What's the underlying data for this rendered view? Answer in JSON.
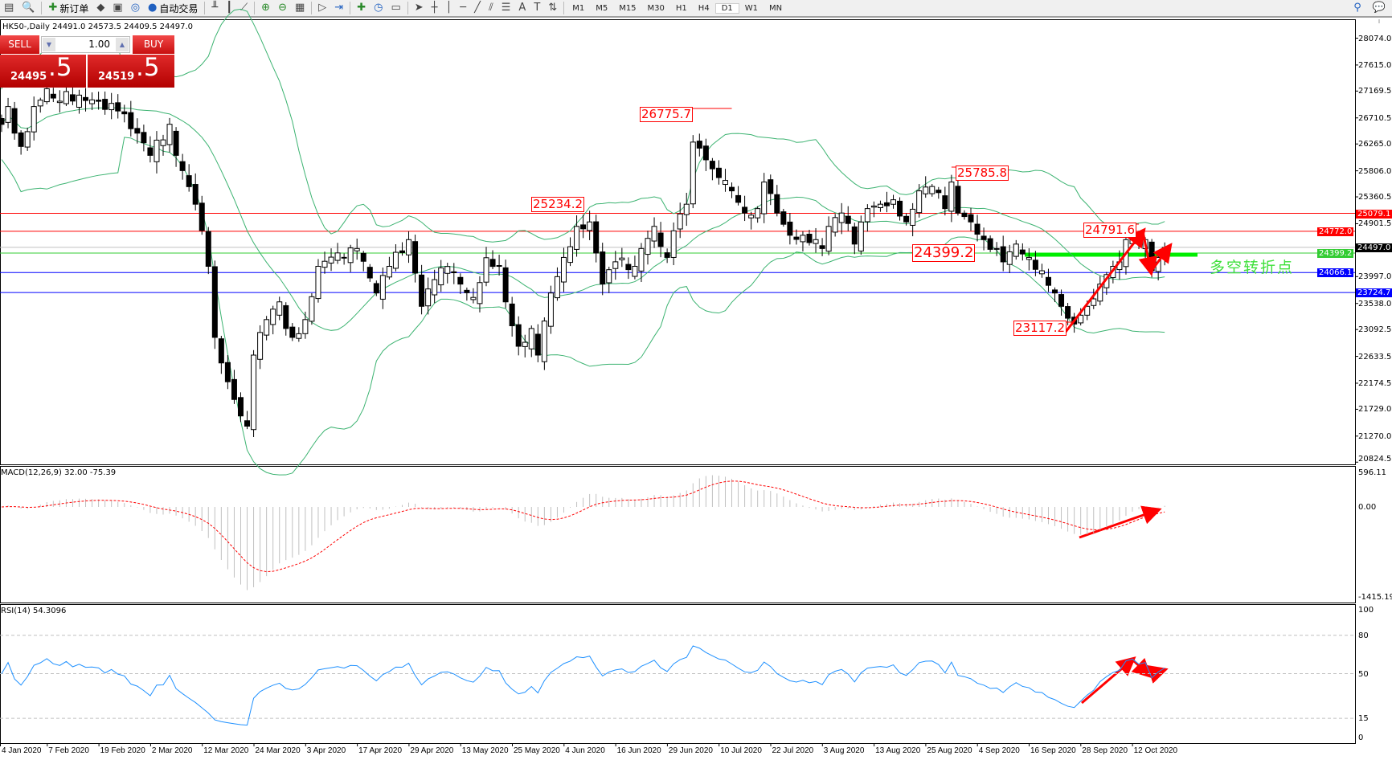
{
  "toolbar": {
    "icons": [
      {
        "name": "new-chart-icon",
        "glyph": "▤"
      },
      {
        "name": "zoom-window-icon",
        "glyph": "🔍"
      },
      {
        "name": "new-order-icon",
        "glyph": "✚",
        "label": "新订单"
      },
      {
        "name": "metaeditor-icon",
        "glyph": "◆"
      },
      {
        "name": "navigator-icon",
        "glyph": "▣"
      },
      {
        "name": "signals-icon",
        "glyph": "◎"
      },
      {
        "name": "auto-trading-icon",
        "glyph": "●",
        "label": "自动交易"
      },
      {
        "name": "bar-chart-icon",
        "glyph": "╨"
      },
      {
        "name": "candlestick-icon",
        "glyph": "┃"
      },
      {
        "name": "line-chart-icon",
        "glyph": "⟋"
      },
      {
        "name": "zoom-in-icon",
        "glyph": "⊕"
      },
      {
        "name": "zoom-out-icon",
        "glyph": "⊖"
      },
      {
        "name": "tile-windows-icon",
        "glyph": "▦"
      },
      {
        "name": "chart-shift-icon",
        "glyph": "▷"
      },
      {
        "name": "autoscroll-icon",
        "glyph": "⇥"
      },
      {
        "name": "indicators-icon",
        "glyph": "✚"
      },
      {
        "name": "periods-icon",
        "glyph": "◷"
      },
      {
        "name": "templates-icon",
        "glyph": "▭"
      },
      {
        "name": "cursor-icon",
        "glyph": "➤"
      },
      {
        "name": "crosshair-icon",
        "glyph": "┼"
      },
      {
        "name": "vertical-line-icon",
        "glyph": "│"
      },
      {
        "name": "horizontal-line-icon",
        "glyph": "─"
      },
      {
        "name": "trendline-icon",
        "glyph": "╱"
      },
      {
        "name": "equidistant-channel-icon",
        "glyph": "⫽"
      },
      {
        "name": "fibonacci-icon",
        "glyph": "☰"
      },
      {
        "name": "text-icon",
        "glyph": "A"
      },
      {
        "name": "text-label-icon",
        "glyph": "T"
      },
      {
        "name": "arrows-icon",
        "glyph": "⇅"
      }
    ],
    "timeframes": [
      "M1",
      "M5",
      "M15",
      "M30",
      "H1",
      "H4",
      "D1",
      "W1",
      "MN"
    ],
    "active_timeframe": "D1"
  },
  "chart_header": "HK50-,Daily  24491.0 24573.5 24409.5 24497.0",
  "trade_panel": {
    "sell_label": "SELL",
    "buy_label": "BUY",
    "volume": "1.00",
    "sell_price_main": "24495",
    "sell_price_frac": ".5",
    "buy_price_main": "24519",
    "buy_price_frac": ".5"
  },
  "price_axis": [
    "28074.0",
    "27615.0",
    "27169.5",
    "26710.5",
    "26265.0",
    "25806.0",
    "25360.5",
    "24901.5",
    "23997.0",
    "23538.0",
    "23092.5",
    "22633.5",
    "22174.5",
    "21729.0",
    "21270.0",
    "20824.5"
  ],
  "levels": [
    {
      "price": "25079.1",
      "color": "#ff0000"
    },
    {
      "price": "24772.0",
      "color": "#ff0000"
    },
    {
      "price": "24497.0",
      "color": "#000000",
      "line": "#c0c0c0"
    },
    {
      "price": "24399.2",
      "color": "#33cc33"
    },
    {
      "price": "24066.1",
      "color": "#0000ff"
    },
    {
      "price": "23724.7",
      "color": "#0000ff"
    }
  ],
  "annotations": [
    "26775.7",
    "25234.2",
    "25785.8",
    "24791.6",
    "24399.2",
    "23117.2"
  ],
  "note_text": "多空转折点",
  "colors": {
    "bollinger": "#3cb371",
    "rsi": "#1e90ff",
    "macd_signal": "#ff0000",
    "macd_hist": "#c0c0c0",
    "arrow": "#ff0000",
    "pivot_line": "#00ee00"
  },
  "time_axis": [
    "4 Jan 2020",
    "7 Feb 2020",
    "19 Feb 2020",
    "2 Mar 2020",
    "12 Mar 2020",
    "24 Mar 2020",
    "3 Apr 2020",
    "17 Apr 2020",
    "29 Apr 2020",
    "13 May 2020",
    "25 May 2020",
    "4 Jun 2020",
    "16 Jun 2020",
    "29 Jun 2020",
    "10 Jul 2020",
    "22 Jul 2020",
    "3 Aug 2020",
    "13 Aug 2020",
    "25 Aug 2020",
    "4 Sep 2020",
    "16 Sep 2020",
    "28 Sep 2020",
    "12 Oct 2020"
  ],
  "macd": {
    "header": "MACD(12,26,9) 32.00 -75.39",
    "axis": [
      "596.11",
      "0.00",
      "-1415.19"
    ]
  },
  "rsi": {
    "header": "RSI(14) 54.3096",
    "axis": [
      "100",
      "80",
      "50",
      "15",
      "0"
    ]
  },
  "chart_data": {
    "type": "candlestick",
    "symbol": "HK50-",
    "timeframe": "Daily",
    "ylim": [
      20824.5,
      28074.0
    ],
    "close_path": [
      [
        0,
        26600
      ],
      [
        1,
        26905
      ],
      [
        2,
        26450
      ],
      [
        3,
        26222
      ],
      [
        5,
        26905
      ],
      [
        7,
        27209
      ],
      [
        8,
        27050
      ],
      [
        12,
        27100
      ],
      [
        18,
        26829
      ],
      [
        21,
        26450
      ],
      [
        23,
        26070
      ],
      [
        26,
        26602
      ],
      [
        27,
        26070
      ],
      [
        30,
        25235
      ],
      [
        32,
        24173
      ],
      [
        33,
        22958
      ],
      [
        35,
        22199
      ],
      [
        36,
        21896
      ],
      [
        38,
        21440
      ],
      [
        39,
        22655
      ],
      [
        41,
        23262
      ],
      [
        43,
        23565
      ],
      [
        44,
        23110
      ],
      [
        45,
        22958
      ],
      [
        47,
        23262
      ],
      [
        49,
        24173
      ],
      [
        51,
        24330
      ],
      [
        53,
        24325
      ],
      [
        55,
        24477
      ],
      [
        58,
        23717
      ],
      [
        60,
        24173
      ],
      [
        63,
        24629
      ],
      [
        65,
        23489
      ],
      [
        67,
        23945
      ],
      [
        69,
        24170
      ],
      [
        71,
        23869
      ],
      [
        73,
        23641
      ],
      [
        75,
        24320
      ],
      [
        77,
        24173
      ],
      [
        78,
        23565
      ],
      [
        80,
        22806
      ],
      [
        82,
        23110
      ],
      [
        83,
        22655
      ],
      [
        85,
        23717
      ],
      [
        87,
        24325
      ],
      [
        89,
        24856
      ],
      [
        91,
        24932
      ],
      [
        92,
        24400
      ],
      [
        93,
        23869
      ],
      [
        95,
        24250
      ],
      [
        98,
        24173
      ],
      [
        99,
        24477
      ],
      [
        101,
        24856
      ],
      [
        103,
        24325
      ],
      [
        104,
        24780
      ],
      [
        106,
        25235
      ],
      [
        107,
        26297
      ],
      [
        109,
        25994
      ],
      [
        110,
        25840
      ],
      [
        111,
        25690
      ],
      [
        113,
        25463
      ],
      [
        115,
        25084
      ],
      [
        117,
        25160
      ],
      [
        118,
        25614
      ],
      [
        120,
        25084
      ],
      [
        122,
        24704
      ],
      [
        124,
        24704
      ],
      [
        126,
        24629
      ],
      [
        127,
        24477
      ],
      [
        128,
        24856
      ],
      [
        130,
        25084
      ],
      [
        132,
        24553
      ],
      [
        134,
        25160
      ],
      [
        136,
        25235
      ],
      [
        138,
        25311
      ],
      [
        140,
        24932
      ],
      [
        142,
        25463
      ],
      [
        144,
        25538
      ],
      [
        146,
        25160
      ],
      [
        147,
        25614
      ],
      [
        148,
        25084
      ],
      [
        150,
        24932
      ],
      [
        152,
        24629
      ],
      [
        154,
        24477
      ],
      [
        155,
        24249
      ],
      [
        157,
        24553
      ],
      [
        159,
        24325
      ],
      [
        161,
        24097
      ],
      [
        163,
        23717
      ],
      [
        164,
        23489
      ],
      [
        166,
        23186
      ],
      [
        167,
        23337
      ],
      [
        168,
        23489
      ],
      [
        170,
        23869
      ],
      [
        172,
        24173
      ],
      [
        173,
        24249
      ],
      [
        174,
        24629
      ],
      [
        177,
        24629
      ],
      [
        178,
        24097
      ],
      [
        179,
        24325
      ],
      [
        180,
        24497
      ]
    ]
  }
}
